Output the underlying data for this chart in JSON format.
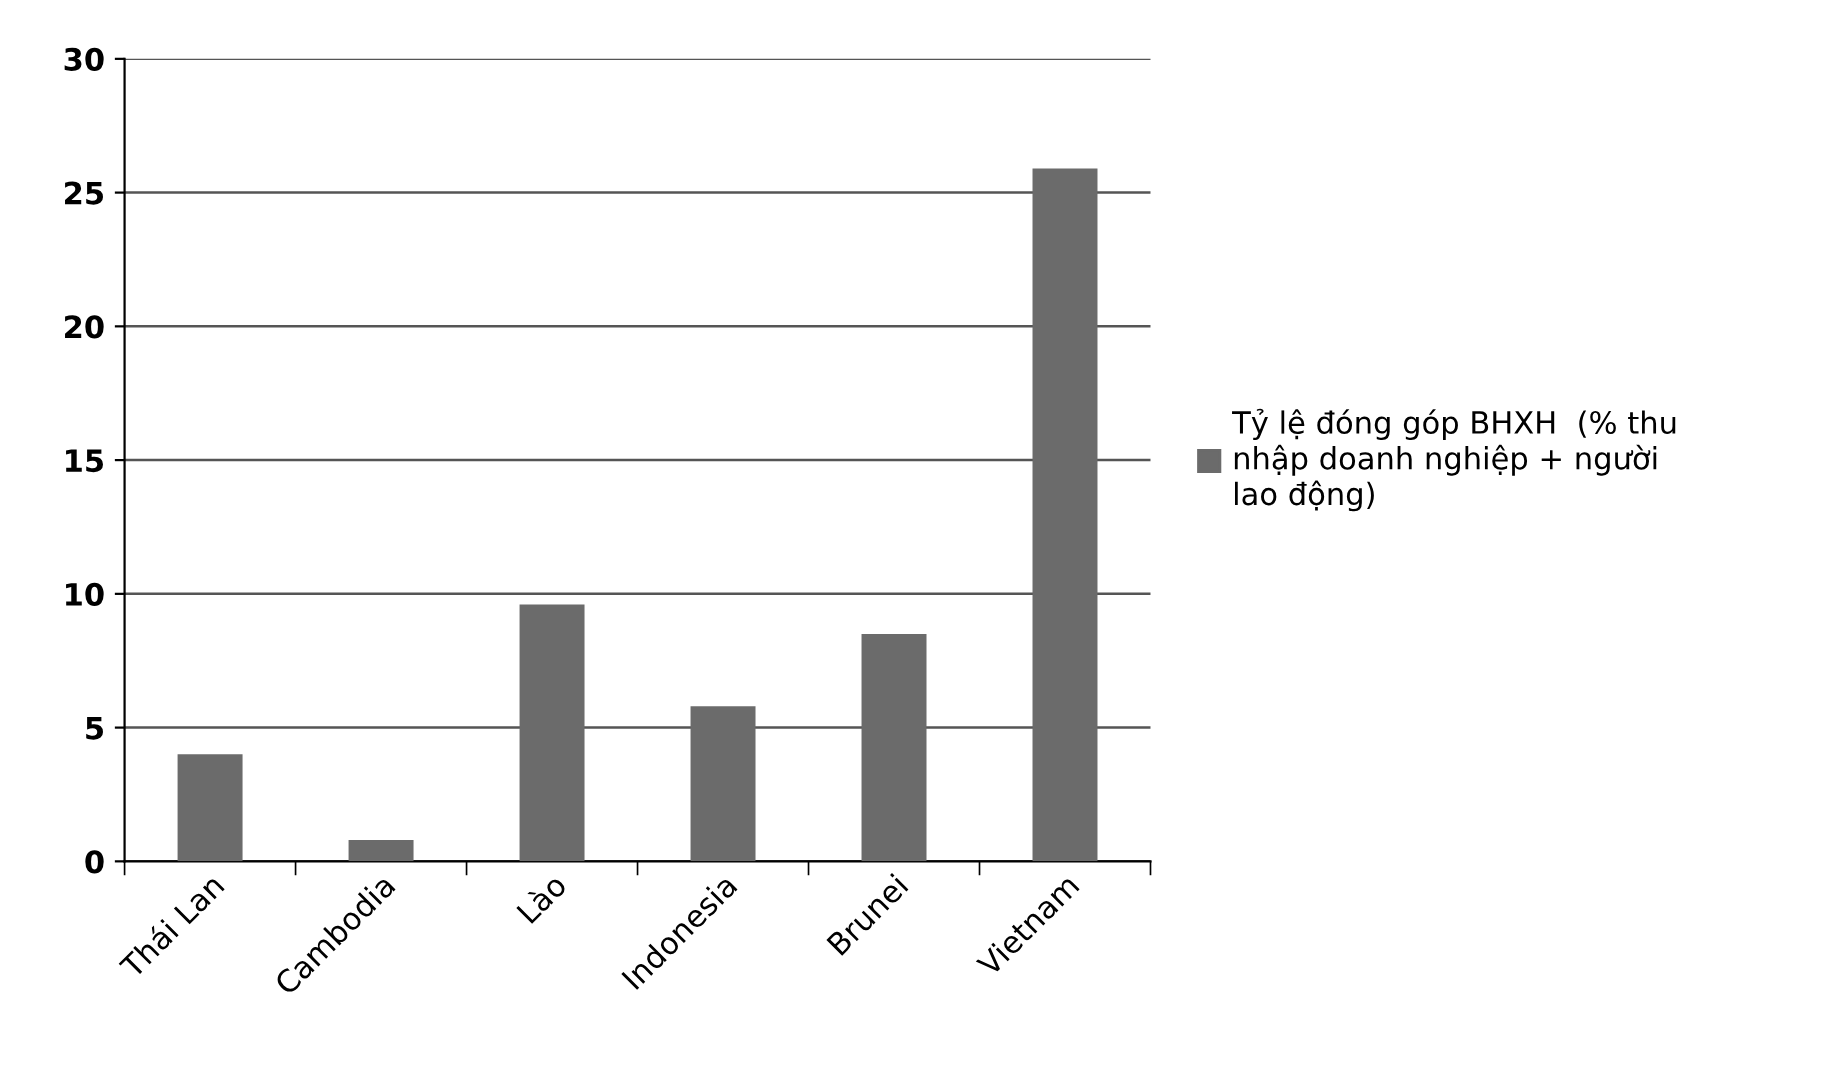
{
  "chart_data": {
    "type": "bar",
    "categories": [
      "Thái Lan",
      "Cambodia",
      "Lào",
      "Indonesia",
      "Brunei",
      "Vietnam"
    ],
    "series": [
      {
        "name": "Tỷ lệ đóng góp BHXH  (% thu nhập doanh nghiệp + người lao động)",
        "color": "#6b6b6b",
        "values": [
          4.0,
          0.8,
          9.6,
          5.8,
          8.5,
          25.9
        ]
      }
    ],
    "ylim": [
      0,
      30
    ],
    "yticks": [
      0,
      5,
      10,
      15,
      20,
      25,
      30
    ],
    "grid": "y",
    "legend": "right"
  }
}
